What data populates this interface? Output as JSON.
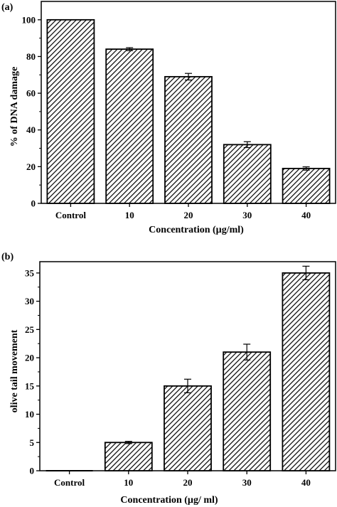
{
  "chart_data": [
    {
      "type": "bar",
      "panel_label": "(a)",
      "categories": [
        "Control",
        "10",
        "20",
        "30",
        "40"
      ],
      "values": [
        100,
        84,
        69,
        32,
        19
      ],
      "errors": [
        0,
        0.8,
        1.8,
        1.6,
        0.9
      ],
      "xlabel": "Concentration (µg/ml)",
      "ylabel": "% of DNA damage",
      "ylim": [
        0,
        110
      ],
      "yticks": [
        0,
        20,
        40,
        60,
        80,
        100
      ],
      "bar_fill": "hatched"
    },
    {
      "type": "bar",
      "panel_label": "(b)",
      "categories": [
        "Control",
        "10",
        "20",
        "30",
        "40"
      ],
      "values": [
        0,
        5,
        15,
        21,
        35
      ],
      "errors": [
        0,
        0.2,
        1.2,
        1.4,
        1.2
      ],
      "xlabel": "Concentration (µg/ ml)",
      "ylabel": "olive tail movement",
      "ylim": [
        0,
        37
      ],
      "yticks": [
        0,
        5,
        10,
        15,
        20,
        25,
        30,
        35
      ],
      "bar_fill": "hatched"
    }
  ]
}
